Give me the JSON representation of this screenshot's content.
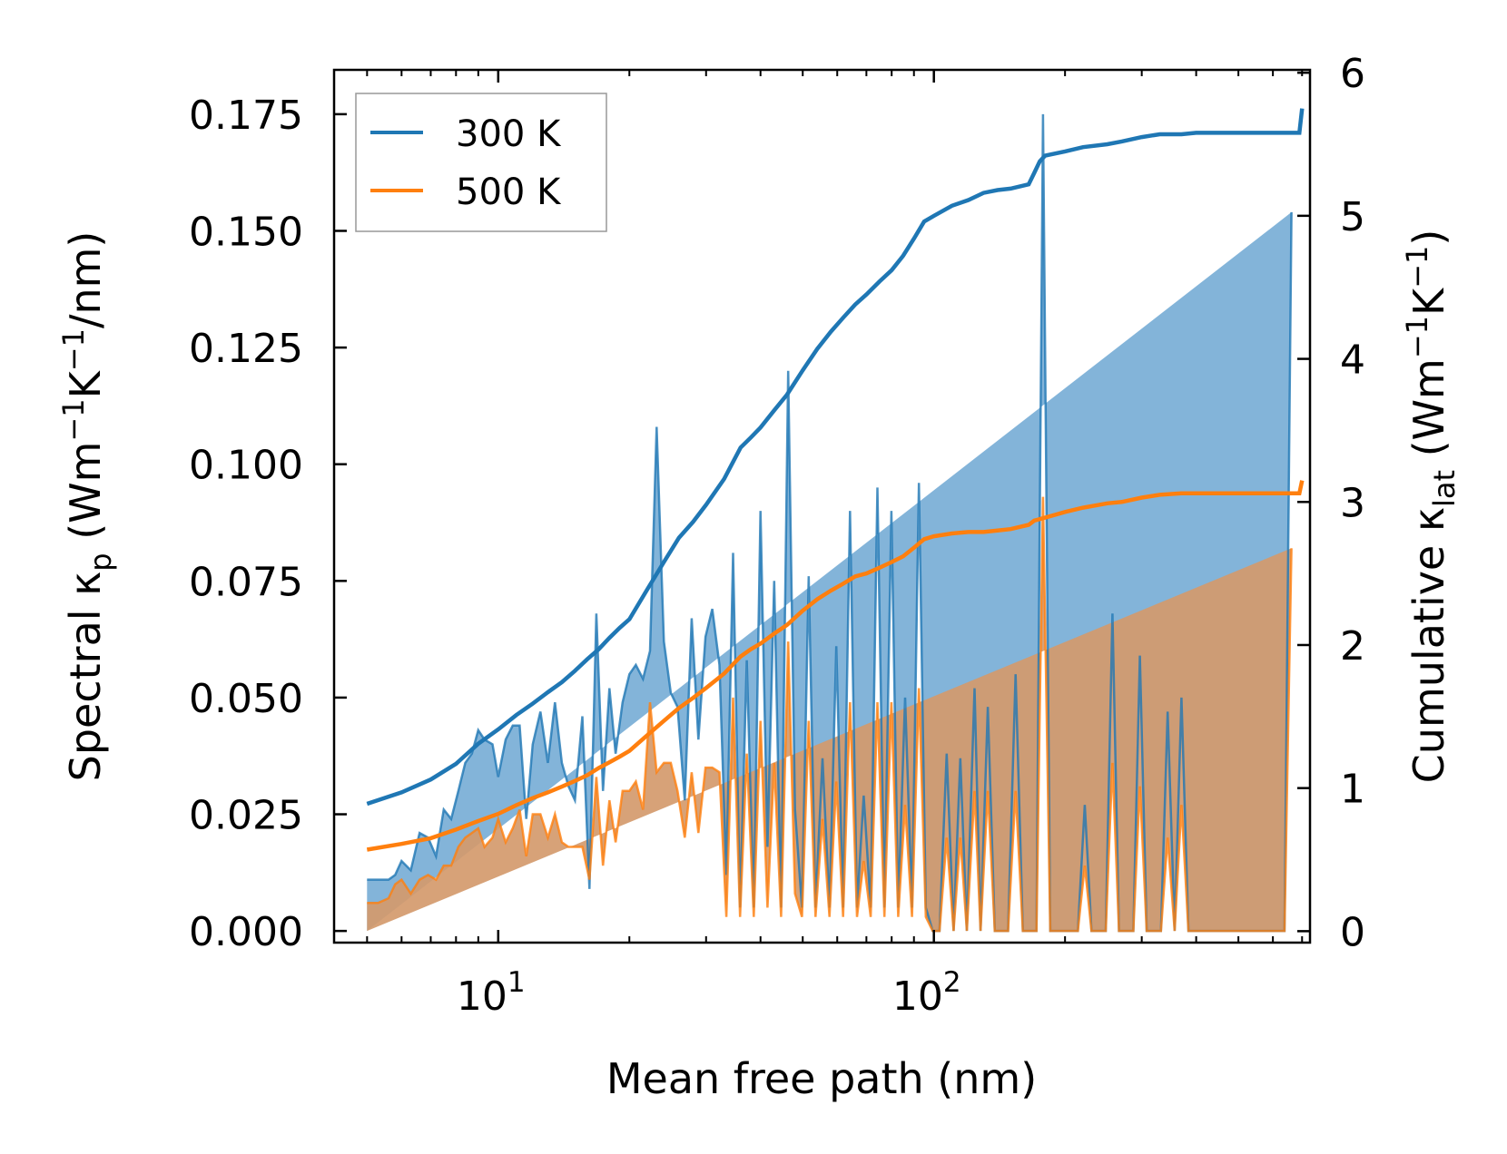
{
  "chart_data": {
    "type": "line",
    "title": "",
    "xlabel": "Mean free path (nm)",
    "xscale": "log",
    "xlim": [
      4.2,
      730
    ],
    "x_ticks": [
      {
        "value": 10,
        "label": "10",
        "exp": "1"
      },
      {
        "value": 100,
        "label": "10",
        "exp": "2"
      }
    ],
    "ylabel_left": {
      "pre": "Spectral κ",
      "sub": "p",
      "units_a": " (Wm",
      "sup1": "−1",
      "units_b": "K",
      "sup2": "−1",
      "units_c": "/nm)"
    },
    "ylabel_right": {
      "pre": "Cumulative κ",
      "sub": "lat",
      "units_a": " (Wm",
      "sup1": "−1",
      "units_b": "K",
      "sup2": "−1",
      "units_c": ")"
    },
    "ylim_left": [
      -0.0025,
      0.1845
    ],
    "ylim_right": [
      -0.08,
      6.02
    ],
    "yticks_left": [
      "0.000",
      "0.025",
      "0.050",
      "0.075",
      "0.100",
      "0.125",
      "0.150",
      "0.175"
    ],
    "yticks_right": [
      "0",
      "1",
      "2",
      "3",
      "4",
      "5",
      "6"
    ],
    "legend": {
      "position": "top-left",
      "entries": [
        "300 K",
        "500 K"
      ]
    },
    "colors": {
      "s300": "#1f77b4",
      "s500": "#ff7f0e",
      "fill300": "#5a9bcc",
      "fill500": "#d49a6c"
    },
    "spectral": {
      "x": [
        5.0,
        5.3,
        5.6,
        5.8,
        6.0,
        6.3,
        6.6,
        6.9,
        7.2,
        7.5,
        7.8,
        8.1,
        8.4,
        8.7,
        9.0,
        9.3,
        9.7,
        10.0,
        10.4,
        10.8,
        11.2,
        11.6,
        12.0,
        12.5,
        13.0,
        13.5,
        14.0,
        14.5,
        15.0,
        15.6,
        16.2,
        16.8,
        17.4,
        18.0,
        18.6,
        19.3,
        20.0,
        20.7,
        21.5,
        22.3,
        23.1,
        24.0,
        24.9,
        25.8,
        26.8,
        27.8,
        28.8,
        29.9,
        31.0,
        32.2,
        33.4,
        34.6,
        35.9,
        37.2,
        38.6,
        40.0,
        41.5,
        43.0,
        44.6,
        46.3,
        48.0,
        49.8,
        51.6,
        53.5,
        55.5,
        57.6,
        59.7,
        61.9,
        64.2,
        66.6,
        69.0,
        71.6,
        74.2,
        77.0,
        79.9,
        82.8,
        85.9,
        89.1,
        92.4,
        95.8,
        99.4,
        103,
        107,
        111,
        115,
        119,
        124,
        128,
        133,
        138,
        143,
        148,
        154,
        160,
        166,
        172,
        178,
        185,
        192,
        199,
        206,
        214,
        222,
        230,
        239,
        248,
        257,
        266,
        276,
        287,
        297,
        308,
        320,
        332,
        344,
        357,
        370,
        384,
        398,
        413,
        428,
        444,
        460,
        477,
        495,
        513,
        532,
        552,
        572,
        593,
        615,
        638,
        662,
        686,
        700
      ],
      "series": [
        {
          "name": "300 K",
          "values": [
            0.011,
            0.011,
            0.011,
            0.012,
            0.015,
            0.013,
            0.021,
            0.02,
            0.016,
            0.026,
            0.024,
            0.03,
            0.036,
            0.038,
            0.043,
            0.041,
            0.04,
            0.033,
            0.041,
            0.044,
            0.044,
            0.024,
            0.04,
            0.047,
            0.036,
            0.049,
            0.036,
            0.031,
            0.028,
            0.046,
            0.009,
            0.068,
            0.03,
            0.052,
            0.038,
            0.049,
            0.055,
            0.057,
            0.054,
            0.06,
            0.108,
            0.062,
            0.051,
            0.048,
            0.028,
            0.067,
            0.041,
            0.063,
            0.069,
            0.057,
            0.012,
            0.081,
            0.005,
            0.058,
            0.005,
            0.09,
            0.018,
            0.075,
            0.005,
            0.12,
            0.026,
            0.005,
            0.076,
            0.005,
            0.037,
            0.005,
            0.061,
            0.005,
            0.09,
            0.005,
            0.029,
            0.005,
            0.095,
            0.005,
            0.09,
            0.005,
            0.05,
            0.005,
            0.096,
            0.005,
            0.0,
            0.0,
            0.038,
            0.0,
            0.037,
            0.0,
            0.052,
            0.0,
            0.048,
            0.0,
            0.0,
            0.0,
            0.055,
            0.0,
            0.0,
            0.0,
            0.175,
            0.0,
            0.0,
            0.0,
            0.0,
            0.0,
            0.027,
            0.0,
            0.0,
            0.0,
            0.068,
            0.0,
            0.0,
            0.0,
            0.059,
            0.0,
            0.0,
            0.0,
            0.047,
            0.0,
            0.05,
            0.0,
            0.0,
            0.0,
            0.0,
            0.0,
            0.0,
            0.0,
            0.0,
            0.0,
            0.0,
            0.0,
            0.0,
            0.0,
            0.0,
            0.0,
            0.154
          ]
        },
        {
          "name": "500 K",
          "values": [
            0.006,
            0.006,
            0.007,
            0.01,
            0.011,
            0.008,
            0.011,
            0.012,
            0.011,
            0.014,
            0.014,
            0.018,
            0.02,
            0.021,
            0.022,
            0.018,
            0.02,
            0.024,
            0.019,
            0.022,
            0.026,
            0.016,
            0.025,
            0.025,
            0.02,
            0.025,
            0.019,
            0.018,
            0.018,
            0.018,
            0.011,
            0.033,
            0.014,
            0.028,
            0.019,
            0.03,
            0.03,
            0.032,
            0.026,
            0.049,
            0.034,
            0.036,
            0.036,
            0.03,
            0.02,
            0.034,
            0.021,
            0.035,
            0.035,
            0.034,
            0.003,
            0.05,
            0.003,
            0.038,
            0.003,
            0.045,
            0.005,
            0.036,
            0.003,
            0.062,
            0.008,
            0.003,
            0.045,
            0.003,
            0.024,
            0.003,
            0.032,
            0.003,
            0.049,
            0.003,
            0.015,
            0.003,
            0.049,
            0.003,
            0.049,
            0.003,
            0.027,
            0.003,
            0.052,
            0.003,
            0.0,
            0.0,
            0.02,
            0.0,
            0.02,
            0.0,
            0.03,
            0.0,
            0.03,
            0.0,
            0.0,
            0.0,
            0.03,
            0.0,
            0.0,
            0.0,
            0.093,
            0.0,
            0.0,
            0.0,
            0.0,
            0.0,
            0.014,
            0.0,
            0.0,
            0.0,
            0.036,
            0.0,
            0.0,
            0.0,
            0.031,
            0.0,
            0.0,
            0.0,
            0.02,
            0.0,
            0.027,
            0.0,
            0.0,
            0.0,
            0.0,
            0.0,
            0.0,
            0.0,
            0.0,
            0.0,
            0.0,
            0.0,
            0.0,
            0.0,
            0.0,
            0.0,
            0.082
          ]
        }
      ]
    },
    "cumulative": {
      "series": [
        {
          "name": "300 K",
          "x": [
            5,
            6,
            7,
            8,
            9,
            10,
            11,
            12,
            13,
            14,
            15,
            16,
            17,
            18,
            19,
            20,
            22,
            24,
            26,
            28,
            30,
            33,
            36,
            38,
            40,
            43,
            46,
            50,
            54,
            58,
            62,
            66,
            70,
            75,
            80,
            85,
            90,
            95,
            100,
            110,
            120,
            130,
            140,
            150,
            165,
            170,
            175,
            180,
            200,
            220,
            250,
            270,
            300,
            330,
            370,
            400,
            450,
            500,
            560,
            620,
            690,
            700
          ],
          "values": [
            0.89,
            0.97,
            1.06,
            1.17,
            1.31,
            1.41,
            1.51,
            1.59,
            1.67,
            1.74,
            1.82,
            1.9,
            1.97,
            2.05,
            2.12,
            2.18,
            2.39,
            2.58,
            2.75,
            2.86,
            2.98,
            3.16,
            3.38,
            3.45,
            3.52,
            3.64,
            3.75,
            3.92,
            4.07,
            4.19,
            4.29,
            4.38,
            4.45,
            4.54,
            4.62,
            4.72,
            4.84,
            4.96,
            5.0,
            5.07,
            5.11,
            5.16,
            5.18,
            5.19,
            5.22,
            5.3,
            5.38,
            5.42,
            5.45,
            5.48,
            5.5,
            5.52,
            5.55,
            5.57,
            5.57,
            5.58,
            5.58,
            5.58,
            5.58,
            5.58,
            5.58,
            5.75
          ]
        },
        {
          "name": "500 K",
          "x": [
            5,
            6,
            7,
            8,
            9,
            10,
            11,
            12,
            13,
            14,
            15,
            16,
            17,
            18,
            19,
            20,
            22,
            24,
            26,
            28,
            30,
            33,
            36,
            38,
            40,
            43,
            46,
            50,
            54,
            58,
            62,
            66,
            70,
            75,
            80,
            85,
            90,
            95,
            100,
            110,
            120,
            130,
            140,
            150,
            165,
            170,
            175,
            180,
            200,
            220,
            250,
            270,
            300,
            330,
            370,
            400,
            450,
            500,
            560,
            620,
            690,
            700
          ],
          "values": [
            0.57,
            0.61,
            0.65,
            0.71,
            0.77,
            0.82,
            0.88,
            0.93,
            0.97,
            1.01,
            1.05,
            1.09,
            1.14,
            1.18,
            1.22,
            1.26,
            1.37,
            1.47,
            1.56,
            1.63,
            1.7,
            1.8,
            1.92,
            1.97,
            2.01,
            2.08,
            2.14,
            2.24,
            2.32,
            2.38,
            2.43,
            2.48,
            2.5,
            2.54,
            2.58,
            2.62,
            2.68,
            2.74,
            2.76,
            2.78,
            2.79,
            2.79,
            2.8,
            2.81,
            2.84,
            2.87,
            2.88,
            2.89,
            2.93,
            2.96,
            2.99,
            3.0,
            3.03,
            3.05,
            3.06,
            3.06,
            3.06,
            3.06,
            3.06,
            3.06,
            3.06,
            3.15
          ]
        }
      ]
    }
  }
}
